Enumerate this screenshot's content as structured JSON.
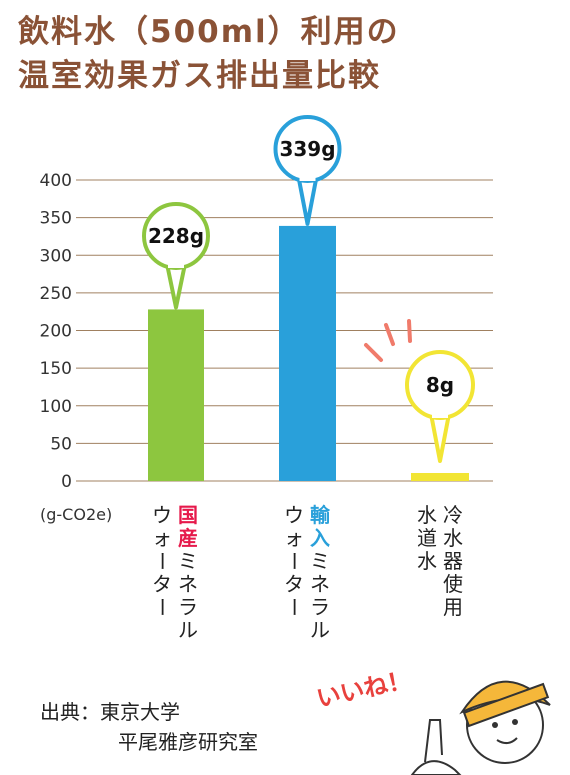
{
  "title_line1": "飲料水（500ml）利用の",
  "title_line2": "温室効果ガス排出量比較",
  "chart_data": {
    "type": "bar",
    "title": "飲料水（500ml）利用の温室効果ガス排出量比較",
    "ylabel": "(g-CO2e)",
    "ylim": [
      0,
      400
    ],
    "yticks": [
      0,
      50,
      100,
      150,
      200,
      250,
      300,
      350,
      400
    ],
    "grid": true,
    "categories": [
      {
        "lines": [
          "国産ミネラル",
          "ウォーター"
        ],
        "highlight_chars": 2
      },
      {
        "lines": [
          "輸入ミネラル",
          "ウォーター"
        ],
        "highlight_chars": 2
      },
      {
        "lines": [
          "冷水器使用",
          "水道水"
        ],
        "highlight_chars": 0
      }
    ],
    "values": [
      228,
      339,
      8
    ],
    "data_labels": [
      "228g",
      "339g",
      "8g"
    ],
    "colors": [
      "#8dc63f",
      "#29a0da",
      "#f2e534"
    ],
    "label_highlight_colors": [
      "#e6194b",
      "#29a0da",
      "#222222"
    ],
    "grid_color": "#a08060"
  },
  "badge_text": "いいね！",
  "source_line1": "出典：東京大学",
  "source_line2": "平尾雅彦研究室"
}
